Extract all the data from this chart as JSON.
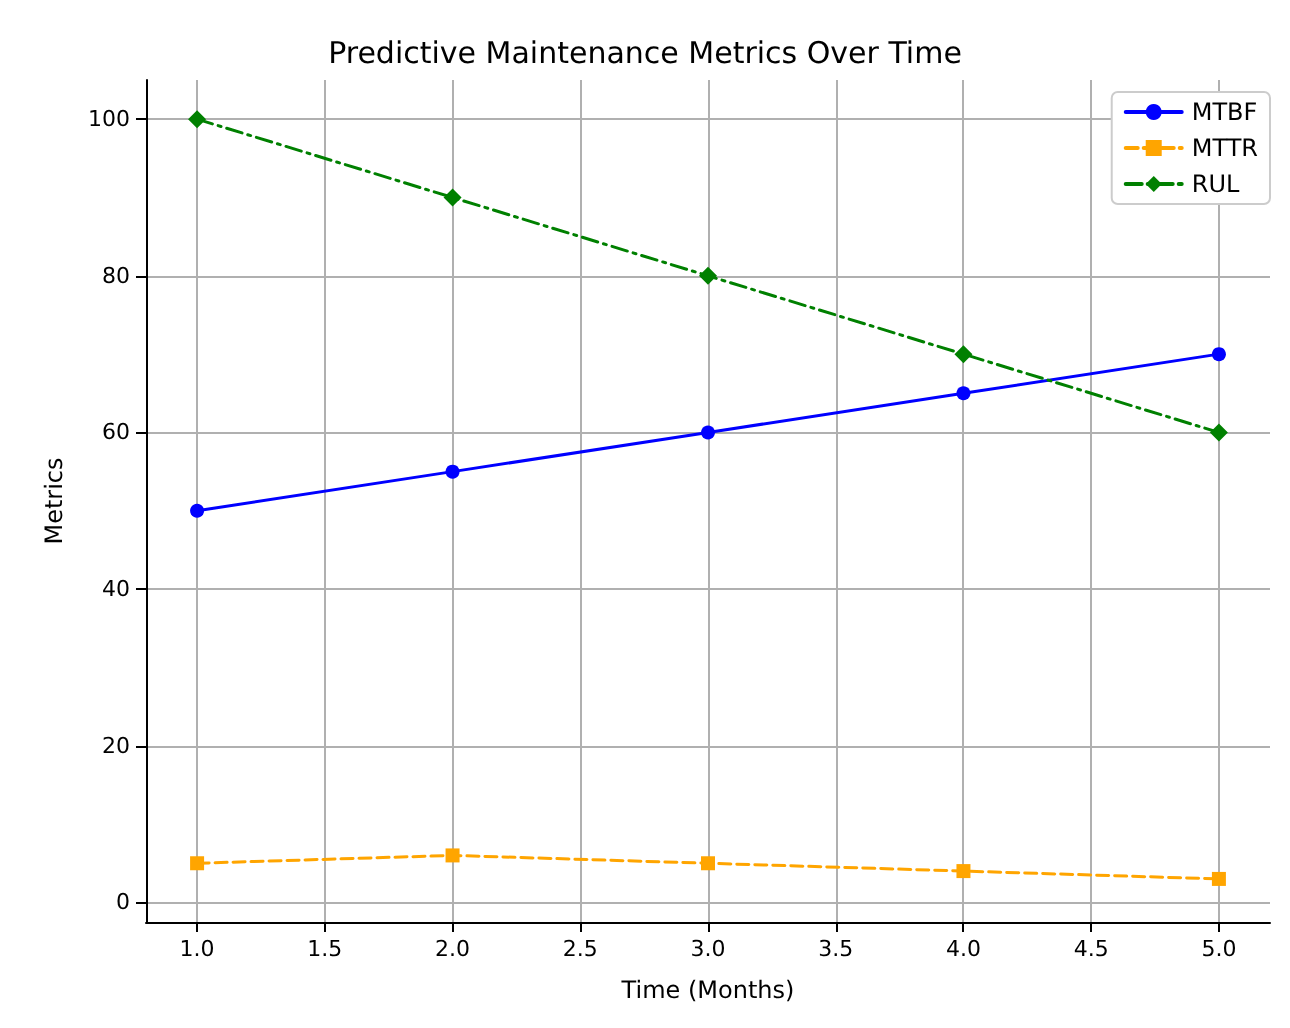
{
  "chart_data": {
    "type": "line",
    "title": "Predictive Maintenance Metrics Over Time",
    "xlabel": "Time (Months)",
    "ylabel": "Metrics",
    "x": [
      1,
      2,
      3,
      4,
      5
    ],
    "series": [
      {
        "name": "MTBF",
        "color": "#0000ff",
        "values": [
          50,
          55,
          60,
          65,
          70
        ],
        "marker": "circle",
        "line_style": "solid"
      },
      {
        "name": "MTTR",
        "color": "#ffa500",
        "values": [
          5,
          6,
          5,
          4,
          3
        ],
        "marker": "square",
        "line_style": "dashed"
      },
      {
        "name": "RUL",
        "color": "#008000",
        "values": [
          100,
          90,
          80,
          70,
          60
        ],
        "marker": "diamond",
        "line_style": "dashdot"
      }
    ],
    "xlim": [
      0.8,
      5.2
    ],
    "ylim": [
      -2.5,
      105
    ],
    "xticks": [
      {
        "value": 1,
        "label": "1.0"
      },
      {
        "value": 1.5,
        "label": "1.5"
      },
      {
        "value": 2,
        "label": "2.0"
      },
      {
        "value": 2.5,
        "label": "2.5"
      },
      {
        "value": 3,
        "label": "3.0"
      },
      {
        "value": 3.5,
        "label": "3.5"
      },
      {
        "value": 4,
        "label": "4.0"
      },
      {
        "value": 4.5,
        "label": "4.5"
      },
      {
        "value": 5,
        "label": "5.0"
      }
    ],
    "yticks": [
      0,
      20,
      40,
      60,
      80,
      100
    ],
    "grid": true,
    "legend": "top right"
  }
}
